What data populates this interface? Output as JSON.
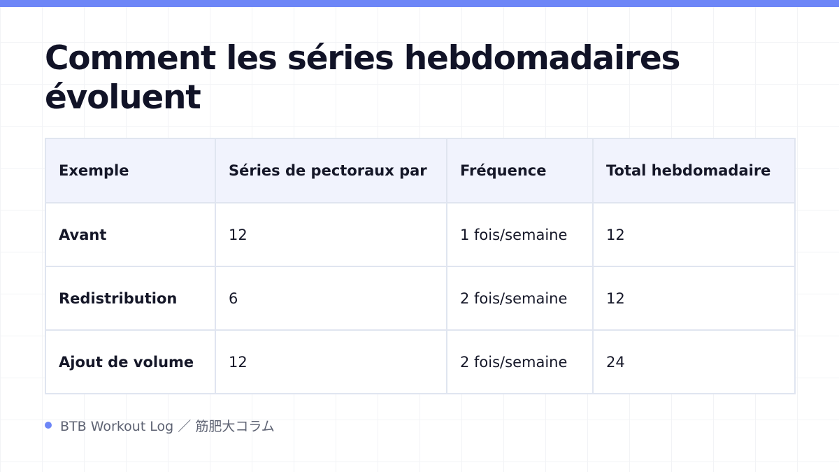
{
  "colors": {
    "accent": "#6d86f7",
    "header_bg": "#f1f3fd",
    "border": "#e0e5f0",
    "title_text": "#111327"
  },
  "title": "Comment les séries hebdomadaires évoluent",
  "table": {
    "headers": [
      "Exemple",
      "Séries de pectoraux par",
      "Fréquence",
      "Total hebdomadaire"
    ],
    "rows": [
      [
        "Avant",
        "12",
        "1 fois/semaine",
        "12"
      ],
      [
        "Redistribution",
        "6",
        "2 fois/semaine",
        "12"
      ],
      [
        "Ajout de volume",
        "12",
        "2 fois/semaine",
        "24"
      ]
    ]
  },
  "footer": {
    "text": "BTB Workout Log ／ 筋肥大コラム",
    "bullet_icon": "dot-icon"
  }
}
